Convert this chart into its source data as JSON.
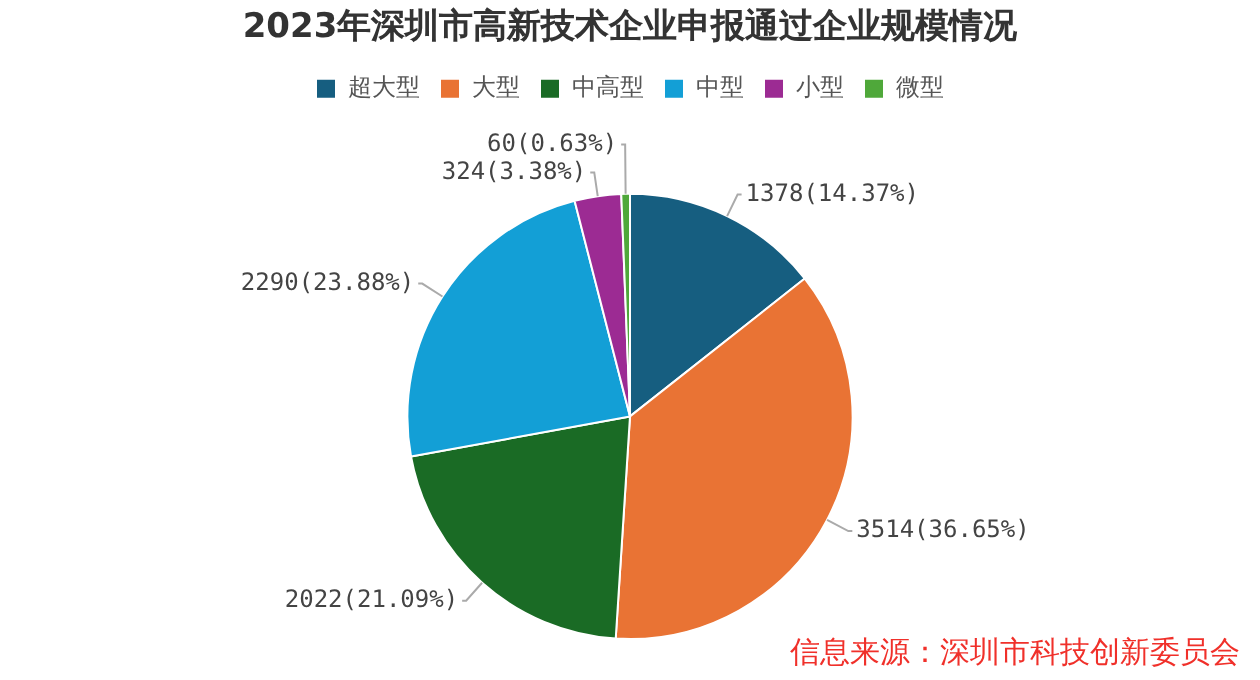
{
  "chart_data": {
    "type": "pie",
    "title": "2023年深圳市高新技术企业申报通过企业规模情况",
    "categories": [
      "超大型",
      "大型",
      "中高型",
      "中型",
      "小型",
      "微型"
    ],
    "values": [
      1378,
      3514,
      2022,
      2290,
      324,
      60
    ],
    "colors": [
      "#165e80",
      "#e97334",
      "#1a6b25",
      "#139fd6",
      "#9c2b93",
      "#4fa83a"
    ],
    "value_labels": [
      "1378(14.37%)",
      "3514(36.65%)",
      "2022(21.09%)",
      "2290(23.88%)",
      "324(3.38%)",
      "60(0.63%)"
    ],
    "legend": "top",
    "annotations": [
      "信息来源：深圳市科技创新委员会"
    ]
  }
}
